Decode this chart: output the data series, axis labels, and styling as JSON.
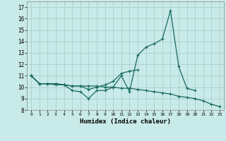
{
  "xlabel": "Humidex (Indice chaleur)",
  "bg_color": "#c8eae8",
  "grid_color": "#aacfcc",
  "line_color": "#1a6b60",
  "xlim": [
    -0.5,
    23.5
  ],
  "ylim": [
    8,
    17.5
  ],
  "xticks": [
    0,
    1,
    2,
    3,
    4,
    5,
    6,
    7,
    8,
    9,
    10,
    11,
    12,
    13,
    14,
    15,
    16,
    17,
    18,
    19,
    20,
    21,
    22,
    23
  ],
  "yticks": [
    8,
    9,
    10,
    11,
    12,
    13,
    14,
    15,
    16,
    17
  ],
  "series": [
    [
      11.0,
      10.3,
      10.3,
      10.3,
      10.2,
      9.7,
      9.6,
      9.0,
      9.7,
      9.7,
      10.0,
      11.0,
      9.6,
      12.8,
      13.5,
      13.8,
      14.2,
      16.7,
      11.8,
      9.9,
      9.7,
      null,
      null,
      null
    ],
    [
      11.0,
      10.3,
      10.3,
      10.3,
      10.2,
      10.1,
      10.1,
      9.8,
      10.0,
      10.2,
      10.5,
      11.2,
      11.4,
      11.5,
      null,
      null,
      null,
      null,
      null,
      null,
      null,
      null,
      null,
      null
    ],
    [
      11.0,
      10.3,
      10.3,
      10.2,
      10.2,
      10.1,
      10.1,
      10.1,
      10.1,
      10.0,
      10.0,
      9.9,
      9.9,
      9.8,
      9.7,
      9.6,
      9.5,
      9.4,
      9.2,
      9.1,
      9.0,
      8.8,
      8.5,
      8.3
    ]
  ]
}
